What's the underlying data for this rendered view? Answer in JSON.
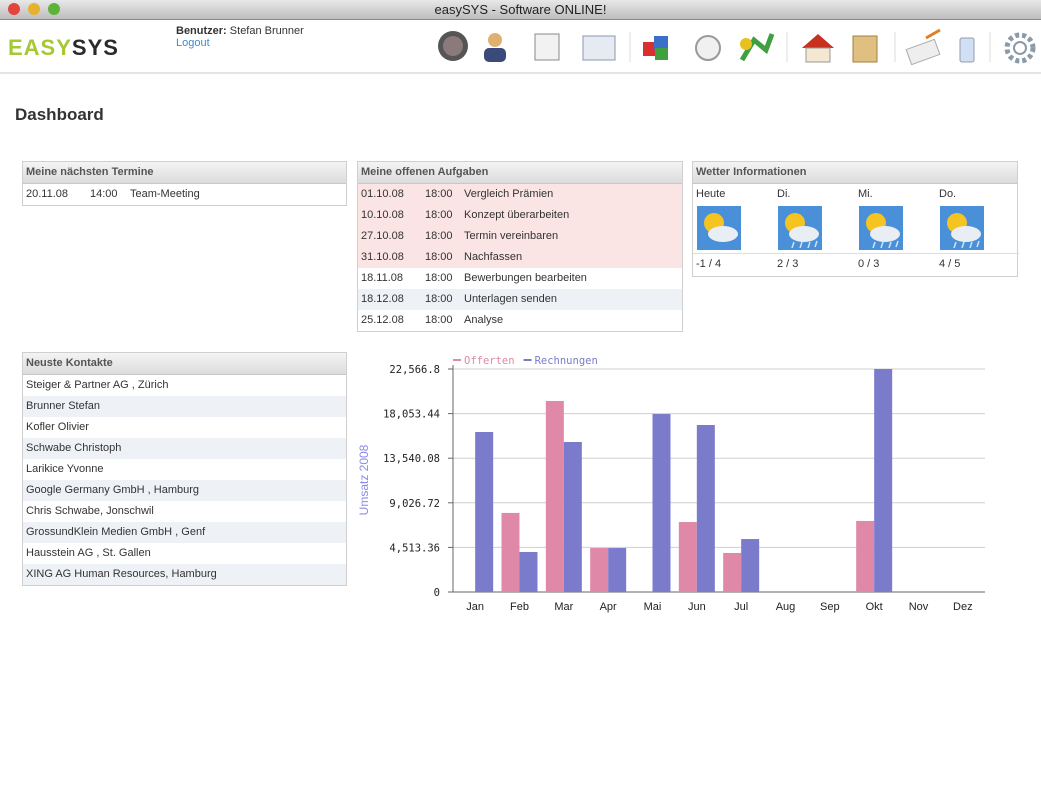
{
  "window_title": "easySYS - Software ONLINE!",
  "logo": {
    "part1": "EASY",
    "part2": "SYS"
  },
  "user": {
    "label": "Benutzer:",
    "name": "Stefan Brunner",
    "logout": "Logout"
  },
  "page_title": "Dashboard",
  "appointments": {
    "title": "Meine nächsten Termine",
    "rows": [
      {
        "date": "20.11.08",
        "time": "14:00",
        "text": "Team-Meeting"
      }
    ]
  },
  "tasks": {
    "title": "Meine offenen Aufgaben",
    "rows": [
      {
        "date": "01.10.08",
        "time": "18:00",
        "text": "Vergleich Prämien",
        "overdue": true
      },
      {
        "date": "10.10.08",
        "time": "18:00",
        "text": "Konzept überarbeiten",
        "overdue": true
      },
      {
        "date": "27.10.08",
        "time": "18:00",
        "text": "Termin vereinbaren",
        "overdue": true
      },
      {
        "date": "31.10.08",
        "time": "18:00",
        "text": "Nachfassen",
        "overdue": true
      },
      {
        "date": "18.11.08",
        "time": "18:00",
        "text": "Bewerbungen bearbeiten",
        "overdue": false
      },
      {
        "date": "18.12.08",
        "time": "18:00",
        "text": "Unterlagen senden",
        "overdue": false
      },
      {
        "date": "25.12.08",
        "time": "18:00",
        "text": "Analyse",
        "overdue": false
      }
    ]
  },
  "weather": {
    "title": "Wetter Informationen",
    "days": [
      {
        "day": "Heute",
        "temp": "-1 / 4",
        "icon": "sun-cloud"
      },
      {
        "day": "Di.",
        "temp": "2 / 3",
        "icon": "sun-rain"
      },
      {
        "day": "Mi.",
        "temp": "0 / 3",
        "icon": "sun-rain"
      },
      {
        "day": "Do.",
        "temp": "4 / 5",
        "icon": "sun-rain"
      }
    ]
  },
  "contacts": {
    "title": "Neuste Kontakte",
    "rows": [
      "Steiger & Partner AG , Zürich",
      "Brunner Stefan",
      "Kofler Olivier",
      "Schwabe Christoph",
      "Larikice Yvonne",
      "Google Germany GmbH , Hamburg",
      "Chris Schwabe, Jonschwil",
      "GrossundKlein Medien GmbH , Genf",
      "Hausstein AG , St. Gallen",
      "XING AG Human Resources, Hamburg"
    ]
  },
  "chart_data": {
    "type": "bar",
    "y_label": "Umsatz 2008",
    "categories": [
      "Jan",
      "Feb",
      "Mar",
      "Apr",
      "Mai",
      "Jun",
      "Jul",
      "Aug",
      "Sep",
      "Okt",
      "Nov",
      "Dez"
    ],
    "series": [
      {
        "name": "Offerten",
        "color": "#e088a8",
        "values": [
          null,
          8000,
          19330,
          4450,
          null,
          7080,
          3950,
          null,
          null,
          7190,
          null,
          null
        ]
      },
      {
        "name": "Rechnungen",
        "color": "#7b7bcc",
        "values": [
          16190,
          4050,
          15180,
          4450,
          18010,
          16900,
          5360,
          null,
          null,
          22566.8,
          null,
          null
        ]
      }
    ],
    "ylim": [
      0,
      22566.8
    ],
    "yticks": [
      0,
      {
        "value": 4513.36,
        "label": "4,513.36"
      },
      {
        "value": 9026.72,
        "label": "9,026.72"
      },
      {
        "value": 13540.08,
        "label": "13,540.08"
      },
      {
        "value": 18053.44,
        "label": "18,053.44"
      },
      {
        "value": 22566.8,
        "label": "22,566.8"
      }
    ],
    "grid": true,
    "legend": "top"
  }
}
